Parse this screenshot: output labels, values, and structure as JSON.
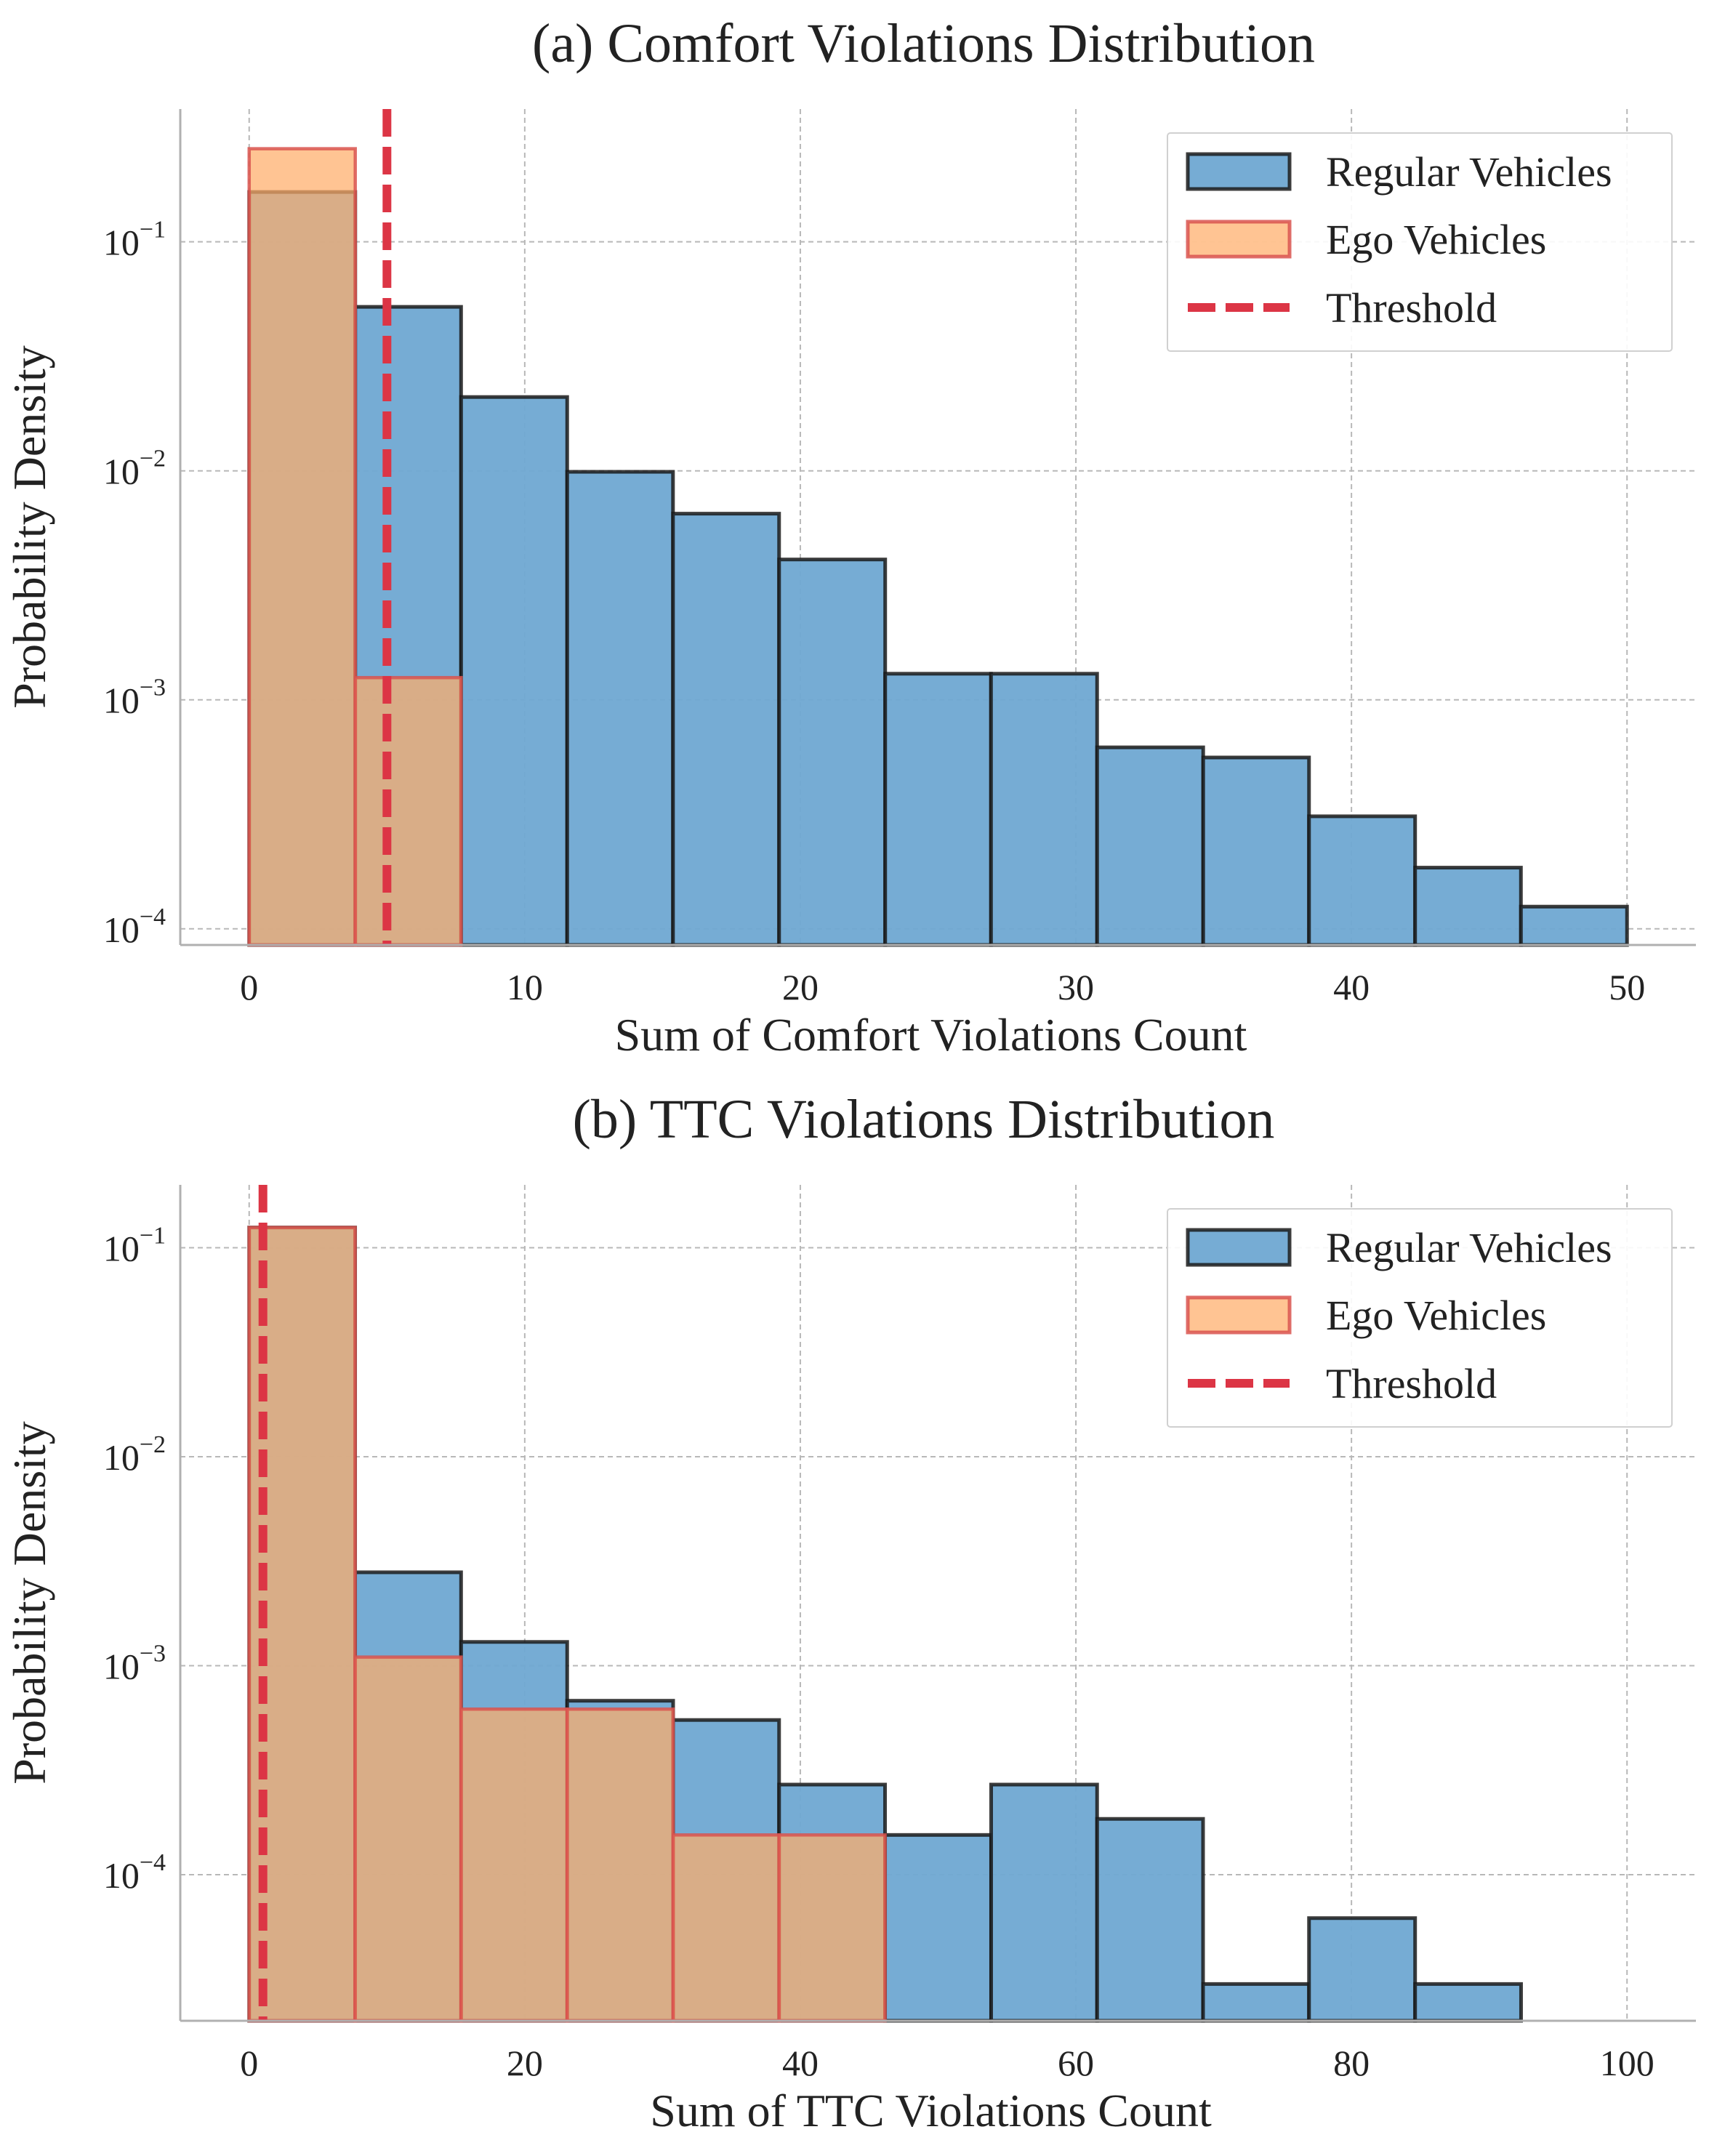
{
  "chart_data": [
    {
      "type": "bar",
      "title": "(a) Comfort Violations Distribution",
      "xlabel": "Sum of Comfort Violations Count",
      "ylabel": "Probability Density",
      "yscale": "log",
      "xlim": [
        -2.5,
        52.5
      ],
      "ylim": [
        8.5e-05,
        0.38
      ],
      "grid": true,
      "legend_position": "top-right",
      "xticks": [
        0,
        10,
        20,
        30,
        40,
        50
      ],
      "xtick_labels": [
        "0",
        "10",
        "20",
        "30",
        "40",
        "50"
      ],
      "yticks": [
        0.1,
        0.01,
        0.001,
        0.0001
      ],
      "ytick_labels": [
        {
          "base": "10",
          "exp": "−1"
        },
        {
          "base": "10",
          "exp": "−2"
        },
        {
          "base": "10",
          "exp": "−3"
        },
        {
          "base": "10",
          "exp": "−4"
        }
      ],
      "series": [
        {
          "name": "Regular Vehicles",
          "color": "#6fa8d2",
          "edge_color": "#1a1a1a",
          "bin_edges": [
            0,
            3.85,
            7.69,
            11.54,
            15.38,
            19.23,
            23.08,
            26.92,
            30.77,
            34.62,
            38.46,
            42.31,
            46.15,
            50
          ],
          "values": [
            0.165,
            0.052,
            0.021,
            0.0099,
            0.0065,
            0.0041,
            0.0013,
            0.0013,
            0.00062,
            0.00056,
            0.00031,
            0.000185,
            0.000125
          ]
        },
        {
          "name": "Ego Vehicles",
          "color": "#ffad6a",
          "edge_color": "#d9534f",
          "bin_edges": [
            0,
            3.85,
            7.69
          ],
          "values": [
            0.255,
            0.00125
          ]
        }
      ],
      "threshold": {
        "name": "Threshold",
        "x": 5,
        "color": "#dc3545"
      }
    },
    {
      "type": "bar",
      "title": "(b) TTC Violations Distribution",
      "xlabel": "Sum of TTC Violations Count",
      "ylabel": "Probability Density",
      "yscale": "log",
      "xlim": [
        -5,
        105
      ],
      "ylim": [
        2e-05,
        0.2
      ],
      "grid": true,
      "legend_position": "top-right",
      "xticks": [
        0,
        20,
        40,
        60,
        80,
        100
      ],
      "xtick_labels": [
        "0",
        "20",
        "40",
        "60",
        "80",
        "100"
      ],
      "yticks": [
        0.1,
        0.01,
        0.001,
        0.0001
      ],
      "ytick_labels": [
        {
          "base": "10",
          "exp": "−1"
        },
        {
          "base": "10",
          "exp": "−2"
        },
        {
          "base": "10",
          "exp": "−3"
        },
        {
          "base": "10",
          "exp": "−4"
        }
      ],
      "series": [
        {
          "name": "Regular Vehicles",
          "color": "#6fa8d2",
          "edge_color": "#1a1a1a",
          "bin_edges": [
            0,
            7.69,
            15.38,
            23.08,
            30.77,
            38.46,
            46.15,
            53.85,
            61.54,
            69.23,
            76.92,
            84.62,
            92.31
          ],
          "values": [
            0.125,
            0.0028,
            0.0013,
            0.00068,
            0.00055,
            0.00027,
            0.000155,
            0.00027,
            0.000185,
            3e-05,
            6.2e-05,
            3e-05
          ]
        },
        {
          "name": "Ego Vehicles",
          "color": "#ffad6a",
          "edge_color": "#d9534f",
          "bin_edges": [
            0,
            7.69,
            15.38,
            23.08,
            30.77,
            38.46,
            46.15
          ],
          "values": [
            0.125,
            0.0011,
            0.00062,
            0.00062,
            0.000155,
            0.000155
          ]
        }
      ],
      "threshold": {
        "name": "Threshold",
        "x": 1,
        "color": "#dc3545"
      }
    }
  ]
}
